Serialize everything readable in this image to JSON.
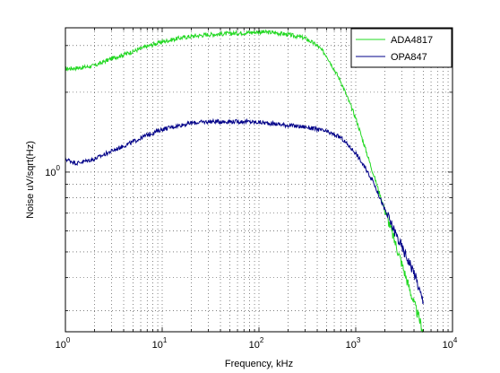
{
  "chart_data": {
    "type": "line",
    "xlabel": "Frequency, kHz",
    "ylabel": "Noise uV/sqrt(Hz)",
    "x_scale": "log",
    "y_scale": "log",
    "xlim": [
      1,
      10000
    ],
    "ylim": [
      0.25,
      3.5
    ],
    "grid": true,
    "legend_position": "top-right",
    "x_ticks": [
      {
        "value": 1,
        "base": "10",
        "exp": "0"
      },
      {
        "value": 10,
        "base": "10",
        "exp": "1"
      },
      {
        "value": 100,
        "base": "10",
        "exp": "2"
      },
      {
        "value": 1000,
        "base": "10",
        "exp": "3"
      },
      {
        "value": 10000,
        "base": "10",
        "exp": "4"
      }
    ],
    "y_ticks": [
      {
        "value": 1,
        "base": "10",
        "exp": "0"
      }
    ],
    "series": [
      {
        "name": "ADA4817",
        "color": "#22d822",
        "x": [
          1,
          1.5,
          2,
          3,
          5,
          7,
          10,
          15,
          20,
          30,
          50,
          70,
          100,
          150,
          200,
          300,
          400,
          500,
          700,
          1000,
          1500,
          2000,
          3000,
          4000,
          5000
        ],
        "y": [
          2.45,
          2.48,
          2.52,
          2.68,
          2.85,
          2.98,
          3.1,
          3.2,
          3.25,
          3.3,
          3.33,
          3.35,
          3.38,
          3.35,
          3.3,
          3.2,
          3.0,
          2.75,
          2.2,
          1.6,
          1.0,
          0.72,
          0.45,
          0.32,
          0.25
        ]
      },
      {
        "name": "OPA847",
        "color": "#000088",
        "x": [
          1,
          1.3,
          2,
          3,
          5,
          7,
          10,
          15,
          20,
          30,
          50,
          70,
          100,
          150,
          200,
          300,
          400,
          500,
          700,
          1000,
          1500,
          2000,
          3000,
          4000,
          5000
        ],
        "y": [
          1.12,
          1.08,
          1.12,
          1.2,
          1.3,
          1.38,
          1.45,
          1.5,
          1.53,
          1.55,
          1.55,
          1.55,
          1.54,
          1.52,
          1.5,
          1.48,
          1.45,
          1.42,
          1.35,
          1.18,
          0.93,
          0.72,
          0.52,
          0.42,
          0.32
        ]
      }
    ]
  }
}
